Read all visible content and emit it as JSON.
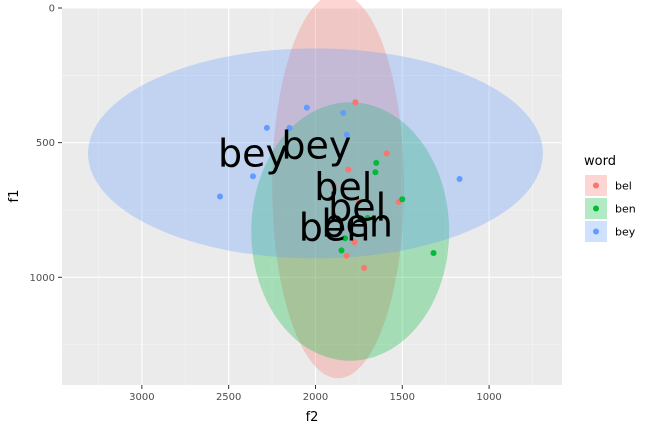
{
  "chart_data": {
    "type": "scatter",
    "xlabel": "f2",
    "ylabel": "f1",
    "x_reversed": true,
    "y_reversed": true,
    "xlim": [
      3460,
      580
    ],
    "ylim": [
      0,
      1400
    ],
    "x_ticks": [
      3000,
      2500,
      2000,
      1500,
      1000
    ],
    "x_tick_labels": [
      "3000",
      "2500",
      "2000",
      "1500",
      "1000"
    ],
    "y_ticks": [
      0,
      500,
      1000
    ],
    "y_tick_labels": [
      "0",
      "500",
      "1000"
    ],
    "grid": true,
    "legend": {
      "title": "word",
      "position": "right",
      "entries": [
        "bel",
        "ben",
        "bey"
      ]
    },
    "series": [
      {
        "name": "bel",
        "color": "#F8766D",
        "points": [
          {
            "f2": 1770,
            "f1": 350
          },
          {
            "f2": 1590,
            "f1": 540
          },
          {
            "f2": 1810,
            "f1": 600
          },
          {
            "f2": 1750,
            "f1": 720
          },
          {
            "f2": 1520,
            "f1": 720
          },
          {
            "f2": 1775,
            "f1": 870
          },
          {
            "f2": 1820,
            "f1": 920
          },
          {
            "f2": 1720,
            "f1": 965
          },
          {
            "f2": 1895,
            "f1": 660
          }
        ],
        "ellipse": {
          "center_f2": 1870,
          "center_f1": 660,
          "half_width_f2": 380,
          "half_height_f1": 715
        },
        "label": {
          "text": "bel",
          "f2": 1840,
          "f1": 665
        }
      },
      {
        "name": "ben",
        "color": "#00BA38",
        "points": [
          {
            "f2": 1650,
            "f1": 575
          },
          {
            "f2": 1655,
            "f1": 610
          },
          {
            "f2": 1500,
            "f1": 710
          },
          {
            "f2": 1830,
            "f1": 855
          },
          {
            "f2": 1850,
            "f1": 900
          },
          {
            "f2": 1320,
            "f1": 910
          },
          {
            "f2": 1700,
            "f1": 780
          }
        ],
        "ellipse": {
          "center_f2": 1800,
          "center_f1": 830,
          "half_width_f2": 570,
          "half_height_f1": 480
        },
        "label": {
          "text": "ben",
          "f2": 1760,
          "f1": 800
        }
      },
      {
        "name": "bey",
        "color": "#619CFF",
        "points": [
          {
            "f2": 2050,
            "f1": 370
          },
          {
            "f2": 1840,
            "f1": 390
          },
          {
            "f2": 2280,
            "f1": 445
          },
          {
            "f2": 2150,
            "f1": 445
          },
          {
            "f2": 1820,
            "f1": 470
          },
          {
            "f2": 2360,
            "f1": 625
          },
          {
            "f2": 2550,
            "f1": 700
          },
          {
            "f2": 1170,
            "f1": 635
          }
        ],
        "ellipse": {
          "center_f2": 2000,
          "center_f1": 540,
          "half_width_f2": 1310,
          "half_height_f1": 390
        },
        "label": {
          "text": "bey",
          "f2": 2360,
          "f1": 540
        }
      }
    ],
    "extra_labels": [
      {
        "text": "bey",
        "f2": 1995,
        "f1": 510,
        "color": "#000000"
      },
      {
        "text": "bel",
        "f2": 1760,
        "f1": 740,
        "color": "#000000"
      },
      {
        "text": "ben",
        "f2": 1890,
        "f1": 815,
        "color": "#000000"
      }
    ]
  }
}
